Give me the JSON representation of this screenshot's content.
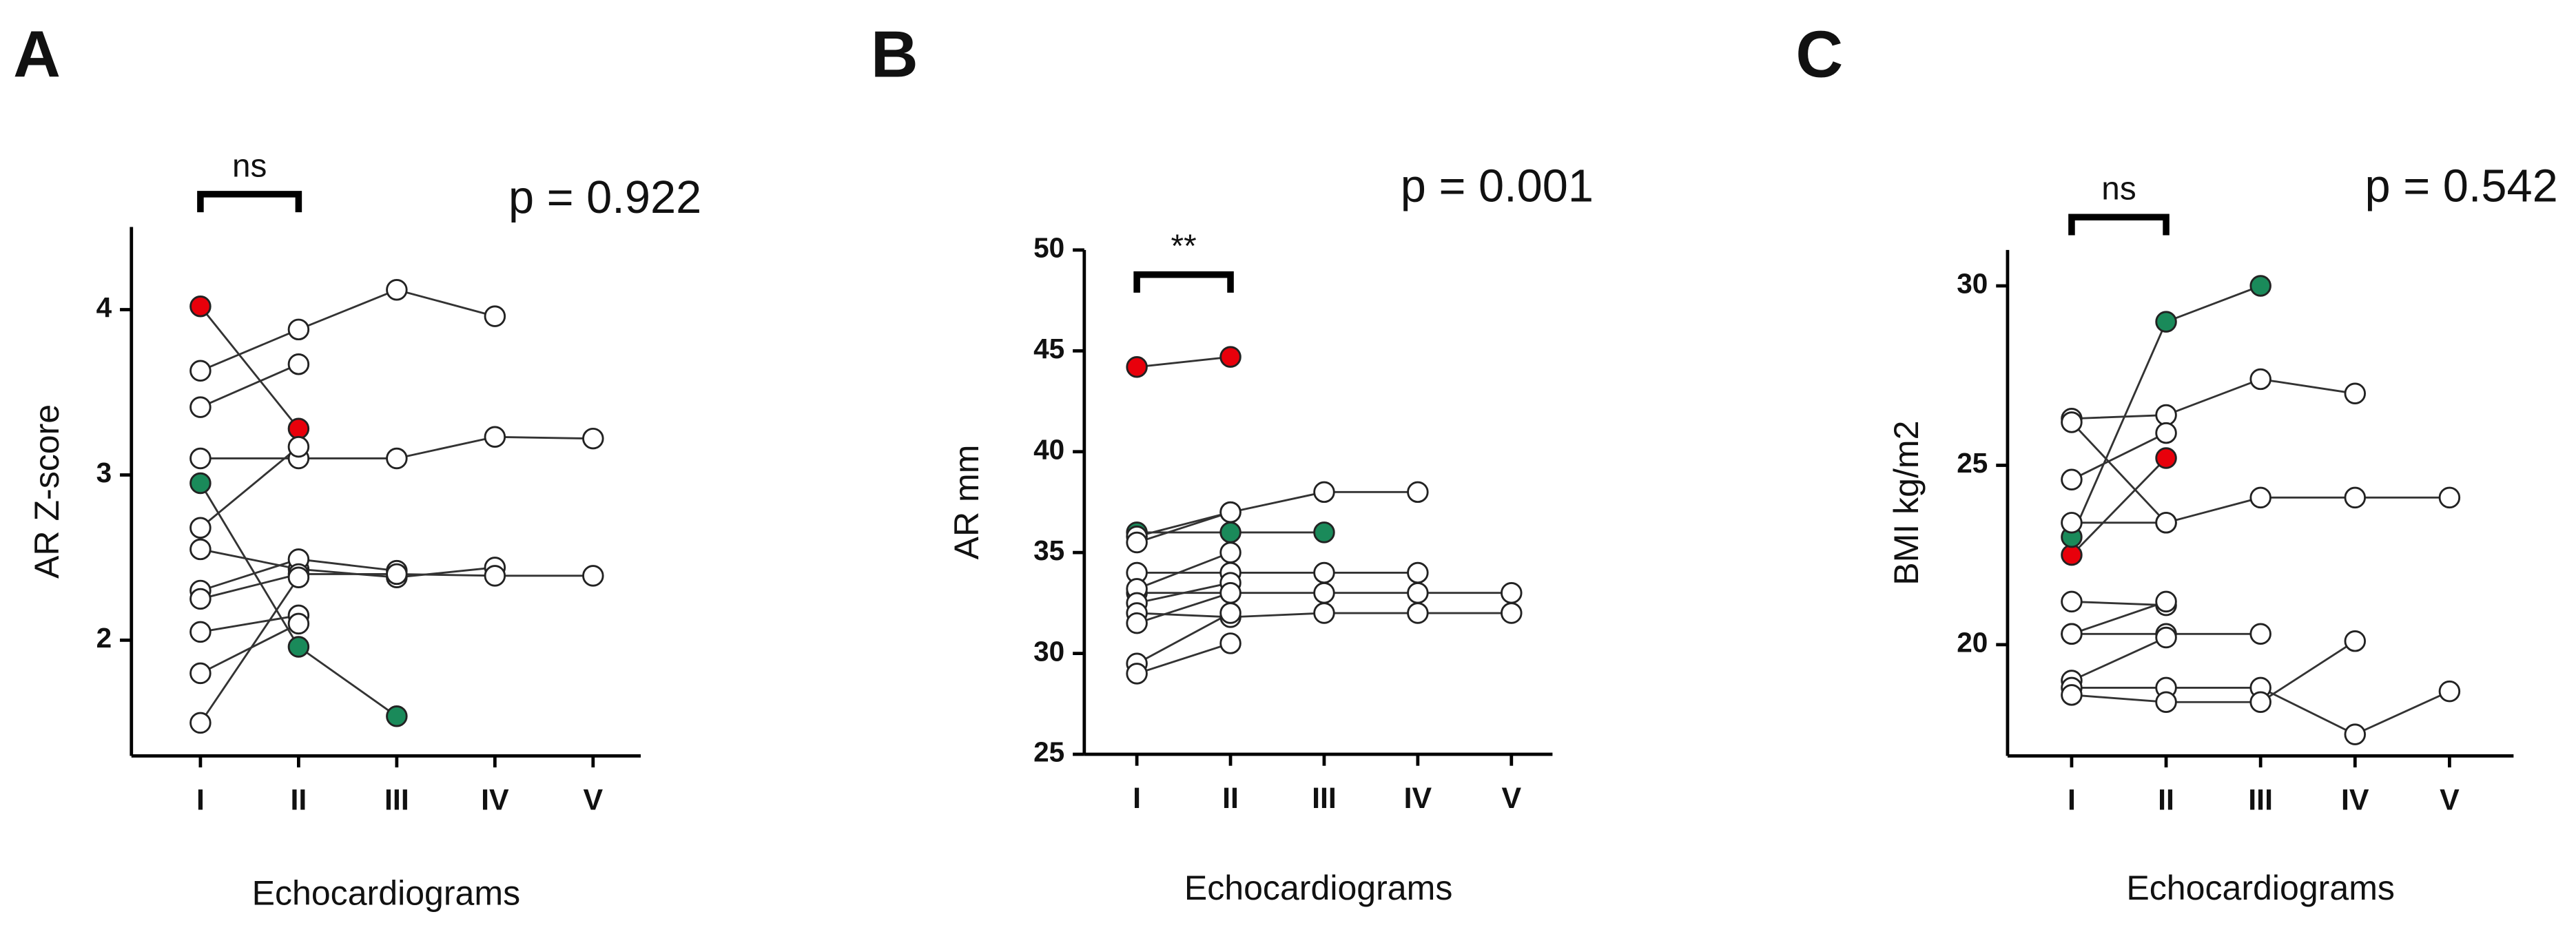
{
  "chart_data": [
    {
      "type": "line",
      "label": "A",
      "y_label": "AR Z-score",
      "x_label": "Echocardiograms",
      "annotation": "p = 0.922",
      "bracket_label": "ns",
      "categories": [
        "I",
        "II",
        "III",
        "IV",
        "V"
      ],
      "ylim": [
        1.3,
        4.5
      ],
      "yticks": [
        2,
        3,
        4
      ],
      "marker_fill": "#ffffff",
      "series": [
        {
          "color": "#e8000b",
          "values": [
            4.02,
            3.28,
            null,
            null,
            null
          ]
        },
        {
          "color": "#1a8a5a",
          "values": [
            2.95,
            1.96,
            1.54,
            null,
            null
          ]
        },
        {
          "color": "#ffffff",
          "values": [
            3.63,
            3.88,
            4.12,
            3.96,
            null
          ]
        },
        {
          "color": "#ffffff",
          "values": [
            3.41,
            3.67,
            null,
            null,
            null
          ]
        },
        {
          "color": "#ffffff",
          "values": [
            3.1,
            3.1,
            3.1,
            3.23,
            3.22
          ]
        },
        {
          "color": "#ffffff",
          "values": [
            2.68,
            3.17,
            null,
            null,
            null
          ]
        },
        {
          "color": "#ffffff",
          "values": [
            2.55,
            2.43,
            2.38,
            2.44,
            null
          ]
        },
        {
          "color": "#ffffff",
          "values": [
            2.3,
            2.49,
            2.42,
            null,
            null
          ]
        },
        {
          "color": "#ffffff",
          "values": [
            2.25,
            2.4,
            2.4,
            2.39,
            2.39
          ]
        },
        {
          "color": "#ffffff",
          "values": [
            2.05,
            2.15,
            null,
            null,
            null
          ]
        },
        {
          "color": "#ffffff",
          "values": [
            1.8,
            2.1,
            null,
            null,
            null
          ]
        },
        {
          "color": "#ffffff",
          "values": [
            1.5,
            2.38,
            null,
            null,
            null
          ]
        }
      ]
    },
    {
      "type": "line",
      "label": "B",
      "y_label": "AR mm",
      "x_label": "Echocardiograms",
      "annotation": "p = 0.001",
      "bracket_label": "**",
      "categories": [
        "I",
        "II",
        "III",
        "IV",
        "V"
      ],
      "ylim": [
        25,
        50
      ],
      "yticks": [
        25,
        30,
        35,
        40,
        45,
        50
      ],
      "marker_fill": "#ffffff",
      "series": [
        {
          "color": "#e8000b",
          "values": [
            44.2,
            44.7,
            null,
            null,
            null
          ]
        },
        {
          "color": "#1a8a5a",
          "values": [
            36,
            36,
            36,
            null,
            null
          ]
        },
        {
          "color": "#ffffff",
          "values": [
            35.8,
            37,
            38,
            38,
            null
          ]
        },
        {
          "color": "#ffffff",
          "values": [
            35.5,
            37,
            null,
            null,
            null
          ]
        },
        {
          "color": "#ffffff",
          "values": [
            34,
            34,
            34,
            34,
            null
          ]
        },
        {
          "color": "#ffffff",
          "values": [
            33,
            33,
            33,
            33,
            33
          ]
        },
        {
          "color": "#ffffff",
          "values": [
            33.2,
            35,
            null,
            null,
            null
          ]
        },
        {
          "color": "#ffffff",
          "values": [
            32.5,
            33.5,
            null,
            null,
            null
          ]
        },
        {
          "color": "#ffffff",
          "values": [
            32,
            31.8,
            32,
            32,
            32
          ]
        },
        {
          "color": "#ffffff",
          "values": [
            31.5,
            33,
            null,
            null,
            null
          ]
        },
        {
          "color": "#ffffff",
          "values": [
            29.5,
            32,
            null,
            null,
            null
          ]
        },
        {
          "color": "#ffffff",
          "values": [
            29,
            30.5,
            null,
            null,
            null
          ]
        }
      ]
    },
    {
      "type": "line",
      "label": "C",
      "y_label": "BMI kg/m2",
      "x_label": "Echocardiograms",
      "annotation": "p = 0.542",
      "bracket_label": "ns",
      "categories": [
        "I",
        "II",
        "III",
        "IV",
        "V"
      ],
      "ylim": [
        16.9,
        31
      ],
      "yticks": [
        20,
        25,
        30
      ],
      "marker_fill": "#ffffff",
      "series": [
        {
          "color": "#e8000b",
          "values": [
            22.5,
            25.2,
            null,
            null,
            null
          ]
        },
        {
          "color": "#1a8a5a",
          "values": [
            23,
            29,
            30,
            null,
            null
          ]
        },
        {
          "color": "#ffffff",
          "values": [
            26.3,
            26.4,
            27.4,
            27.0,
            null
          ]
        },
        {
          "color": "#ffffff",
          "values": [
            26.2,
            23.4,
            null,
            null,
            null
          ]
        },
        {
          "color": "#ffffff",
          "values": [
            24.6,
            25.9,
            null,
            null,
            null
          ]
        },
        {
          "color": "#ffffff",
          "values": [
            23.4,
            23.4,
            24.1,
            24.1,
            24.1
          ]
        },
        {
          "color": "#ffffff",
          "values": [
            21.2,
            21.1,
            null,
            null,
            null
          ]
        },
        {
          "color": "#ffffff",
          "values": [
            20.3,
            21.2,
            null,
            null,
            null
          ]
        },
        {
          "color": "#ffffff",
          "values": [
            20.3,
            20.3,
            20.3,
            null,
            null
          ]
        },
        {
          "color": "#ffffff",
          "values": [
            19.0,
            20.2,
            null,
            null,
            null
          ]
        },
        {
          "color": "#ffffff",
          "values": [
            18.8,
            18.8,
            18.8,
            17.5,
            18.7
          ]
        },
        {
          "color": "#ffffff",
          "values": [
            18.6,
            18.4,
            18.4,
            20.1,
            null
          ]
        }
      ]
    }
  ]
}
